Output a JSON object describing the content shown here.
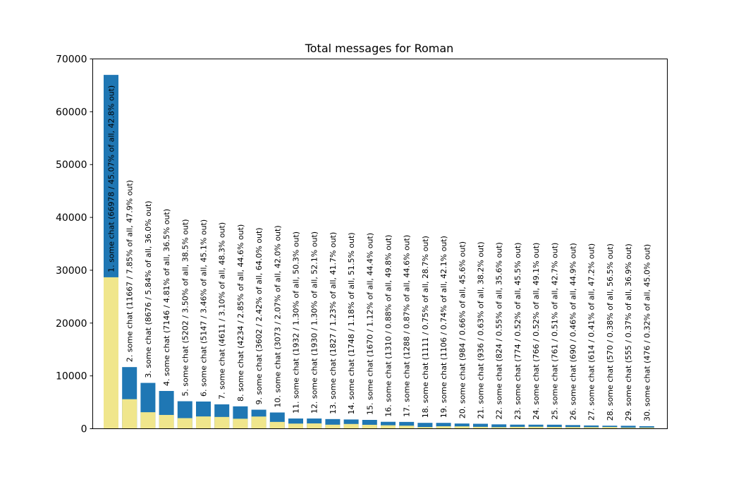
{
  "chart_data": {
    "type": "bar",
    "stacked": true,
    "title": "Total messages for Roman",
    "xlabel": "",
    "ylabel": "",
    "ylim": [
      0,
      70000
    ],
    "yticks": [
      0,
      10000,
      20000,
      30000,
      40000,
      50000,
      60000,
      70000
    ],
    "grid": false,
    "colors": {
      "out": "#f0e68c",
      "in": "#1f77b4"
    },
    "bars": [
      {
        "label": "1. some chat (66978 / 45.07% of all, 42.8% out)",
        "total": 66978,
        "out": 28667
      },
      {
        "label": "2. some chat (11667 / 7.85% of all, 47.9% out)",
        "total": 11667,
        "out": 5588
      },
      {
        "label": "3. some chat (8676 / 5.84% of all, 36.0% out)",
        "total": 8676,
        "out": 3123
      },
      {
        "label": "4. some chat (7146 / 4.81% of all, 36.5% out)",
        "total": 7146,
        "out": 2608
      },
      {
        "label": "5. some chat (5202 / 3.50% of all, 38.5% out)",
        "total": 5202,
        "out": 2003
      },
      {
        "label": "6. some chat (5147 / 3.46% of all, 45.1% out)",
        "total": 5147,
        "out": 2321
      },
      {
        "label": "7. some chat (4611 / 3.10% of all, 48.3% out)",
        "total": 4611,
        "out": 2227
      },
      {
        "label": "8. some chat (4234 / 2.85% of all, 44.6% out)",
        "total": 4234,
        "out": 1888
      },
      {
        "label": "9. some chat (3602 / 2.42% of all, 64.0% out)",
        "total": 3602,
        "out": 2305
      },
      {
        "label": "10. some chat (3073 / 2.07% of all, 42.0% out)",
        "total": 3073,
        "out": 1291
      },
      {
        "label": "11. some chat (1932 / 1.30% of all, 50.3% out)",
        "total": 1932,
        "out": 972
      },
      {
        "label": "12. some chat (1930 / 1.30% of all, 52.1% out)",
        "total": 1930,
        "out": 1006
      },
      {
        "label": "13. some chat (1827 / 1.23% of all, 41.7% out)",
        "total": 1827,
        "out": 762
      },
      {
        "label": "14. some chat (1748 / 1.18% of all, 51.5% out)",
        "total": 1748,
        "out": 900
      },
      {
        "label": "15. some chat (1670 / 1.12% of all, 44.4% out)",
        "total": 1670,
        "out": 741
      },
      {
        "label": "16. some chat (1310 / 0.88% of all, 49.8% out)",
        "total": 1310,
        "out": 652
      },
      {
        "label": "17. some chat (1288 / 0.87% of all, 44.6% out)",
        "total": 1288,
        "out": 574
      },
      {
        "label": "18. some chat (1111 / 0.75% of all, 28.7% out)",
        "total": 1111,
        "out": 319
      },
      {
        "label": "19. some chat (1106 / 0.74% of all, 42.1% out)",
        "total": 1106,
        "out": 466
      },
      {
        "label": "20. some chat (984 / 0.66% of all, 45.6% out)",
        "total": 984,
        "out": 449
      },
      {
        "label": "21. some chat (936 / 0.63% of all, 38.2% out)",
        "total": 936,
        "out": 358
      },
      {
        "label": "22. some chat (824 / 0.55% of all, 35.6% out)",
        "total": 824,
        "out": 293
      },
      {
        "label": "23. some chat (774 / 0.52% of all, 45.5% out)",
        "total": 774,
        "out": 352
      },
      {
        "label": "24. some chat (766 / 0.52% of all, 49.1% out)",
        "total": 766,
        "out": 376
      },
      {
        "label": "25. some chat (761 / 0.51% of all, 42.7% out)",
        "total": 761,
        "out": 325
      },
      {
        "label": "26. some chat (690 / 0.46% of all, 44.9% out)",
        "total": 690,
        "out": 310
      },
      {
        "label": "27. some chat (614 / 0.41% of all, 47.2% out)",
        "total": 614,
        "out": 290
      },
      {
        "label": "28. some chat (570 / 0.38% of all, 56.5% out)",
        "total": 570,
        "out": 322
      },
      {
        "label": "29. some chat (555 / 0.37% of all, 36.9% out)",
        "total": 555,
        "out": 205
      },
      {
        "label": "30. some chat (476 / 0.32% of all, 45.0% out)",
        "total": 476,
        "out": 214
      }
    ]
  }
}
